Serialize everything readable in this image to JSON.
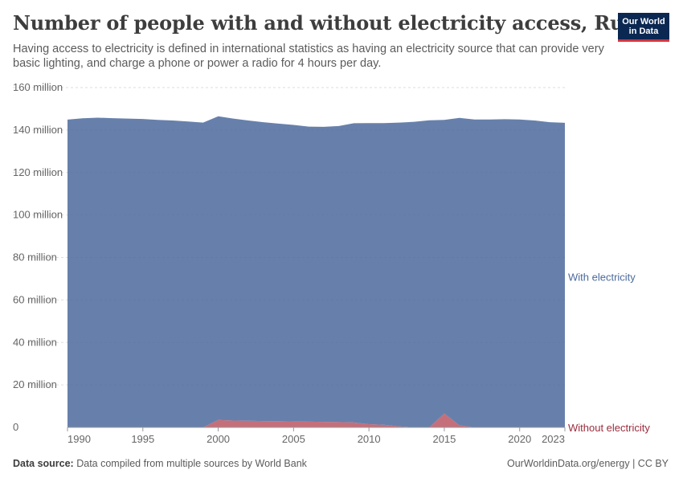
{
  "header": {
    "title": "Number of people with and without electricity access, Russia",
    "subtitle": "Having access to electricity is defined in international statistics as having an electricity source that can provide very basic lighting, and charge a phone or power a radio for 4 hours per day.",
    "logo_line1": "Our World",
    "logo_line2": "in Data"
  },
  "footer": {
    "source_label": "Data source:",
    "source_text": "Data compiled from multiple sources by World Bank",
    "credit": "OurWorldinData.org/energy | CC BY"
  },
  "colors": {
    "with_electricity": "#4c6a9c",
    "without_electricity": "#b13f4f",
    "label_with": "#4c6a9c",
    "label_without": "#9a2d3d",
    "grid": "#dddddd"
  },
  "chart_data": {
    "type": "area",
    "stacked": true,
    "xlim": [
      1990,
      2023
    ],
    "ylim": [
      0,
      160000000
    ],
    "x_ticks": [
      "1990",
      "1995",
      "2000",
      "2005",
      "2010",
      "2015",
      "2020",
      "2023"
    ],
    "y_ticks": [
      "0",
      "20 million",
      "40 million",
      "60 million",
      "80 million",
      "100 million",
      "120 million",
      "140 million",
      "160 million"
    ],
    "grid": "horizontal-dashed",
    "x": [
      1990,
      1991,
      1992,
      1993,
      1994,
      1995,
      1996,
      1997,
      1998,
      1999,
      2000,
      2001,
      2002,
      2003,
      2004,
      2005,
      2006,
      2007,
      2008,
      2009,
      2010,
      2011,
      2012,
      2013,
      2014,
      2015,
      2016,
      2017,
      2018,
      2019,
      2020,
      2021,
      2022,
      2023
    ],
    "series": [
      {
        "name": "Without electricity",
        "key": "without",
        "values": [
          0,
          0,
          0,
          0,
          0,
          0,
          0,
          0,
          0,
          0,
          3500000,
          3200000,
          3100000,
          3000000,
          2900000,
          2800000,
          2700000,
          2600000,
          2500000,
          2300000,
          1500000,
          1200000,
          500000,
          0,
          0,
          6500000,
          1000000,
          0,
          0,
          0,
          0,
          0,
          0,
          0
        ]
      },
      {
        "name": "With electricity",
        "key": "with",
        "values": [
          144900000,
          145500000,
          145800000,
          145600000,
          145400000,
          145200000,
          144800000,
          144500000,
          144000000,
          143500000,
          143000000,
          142200000,
          141400000,
          140700000,
          140100000,
          139600000,
          138900000,
          138900000,
          139400000,
          140900000,
          141800000,
          142100000,
          143000000,
          143900000,
          144600000,
          138300000,
          144700000,
          145000000,
          145000000,
          145100000,
          145000000,
          144500000,
          143700000,
          143400000
        ]
      }
    ]
  }
}
